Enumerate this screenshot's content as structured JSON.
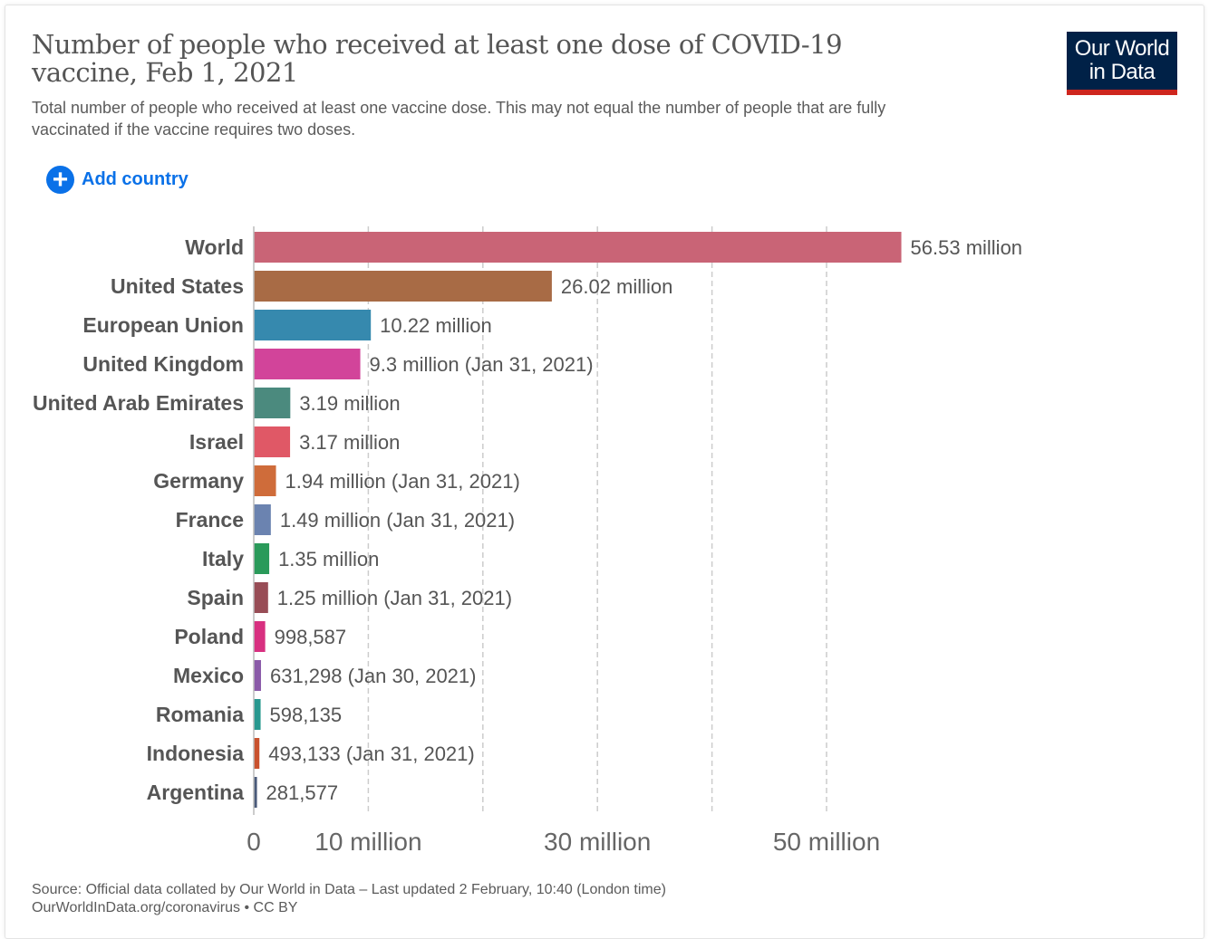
{
  "title": "Number of people who received at least one dose of COVID-19 vaccine, Feb 1, 2021",
  "subtitle": "Total number of people who received at least one vaccine dose. This may not equal the number of people that are fully vaccinated if the vaccine requires two doses.",
  "logo": {
    "line1": "Our World",
    "line2": "in Data",
    "bg": "#002147",
    "accent": "#ce261e"
  },
  "add_country": {
    "label": "Add country",
    "icon": "plus-circle-icon",
    "color": "#0a71e8"
  },
  "footer": {
    "source": "Source: Official data collated by Our World in Data – Last updated 2 February, 10:40 (London time)",
    "license": "OurWorldInData.org/coronavirus • CC BY"
  },
  "chart_data": {
    "type": "bar",
    "orientation": "horizontal",
    "categories": [
      "World",
      "United States",
      "European Union",
      "United Kingdom",
      "United Arab Emirates",
      "Israel",
      "Germany",
      "France",
      "Italy",
      "Spain",
      "Poland",
      "Mexico",
      "Romania",
      "Indonesia",
      "Argentina"
    ],
    "values": [
      56530000,
      26020000,
      10220000,
      9300000,
      3190000,
      3170000,
      1940000,
      1490000,
      1350000,
      1250000,
      998587,
      631298,
      598135,
      493133,
      281577
    ],
    "data_labels": [
      "56.53 million",
      "26.02 million",
      "10.22 million",
      "9.3 million (Jan 31, 2021)",
      "3.19 million",
      "3.17 million",
      "1.94 million (Jan 31, 2021)",
      "1.49 million (Jan 31, 2021)",
      "1.35 million",
      "1.25 million (Jan 31, 2021)",
      "998,587",
      "631,298 (Jan 30, 2021)",
      "598,135",
      "493,133 (Jan 31, 2021)",
      "281,577"
    ],
    "colors": [
      "#c96476",
      "#a86b45",
      "#3689ae",
      "#d2449a",
      "#4b8a7e",
      "#e05866",
      "#cf6c3a",
      "#6b83b0",
      "#2a9a5a",
      "#984d56",
      "#d83080",
      "#8a5aa8",
      "#28988f",
      "#c9522e",
      "#4a5a7a"
    ],
    "xlim": [
      0,
      60000000
    ],
    "gridlines": [
      10000000,
      20000000,
      30000000,
      40000000,
      50000000
    ],
    "ticks": [
      {
        "value": 0,
        "label": "0"
      },
      {
        "value": 10000000,
        "label": "10 million"
      },
      {
        "value": 30000000,
        "label": "30 million"
      },
      {
        "value": 50000000,
        "label": "50 million"
      }
    ],
    "grid": true
  }
}
